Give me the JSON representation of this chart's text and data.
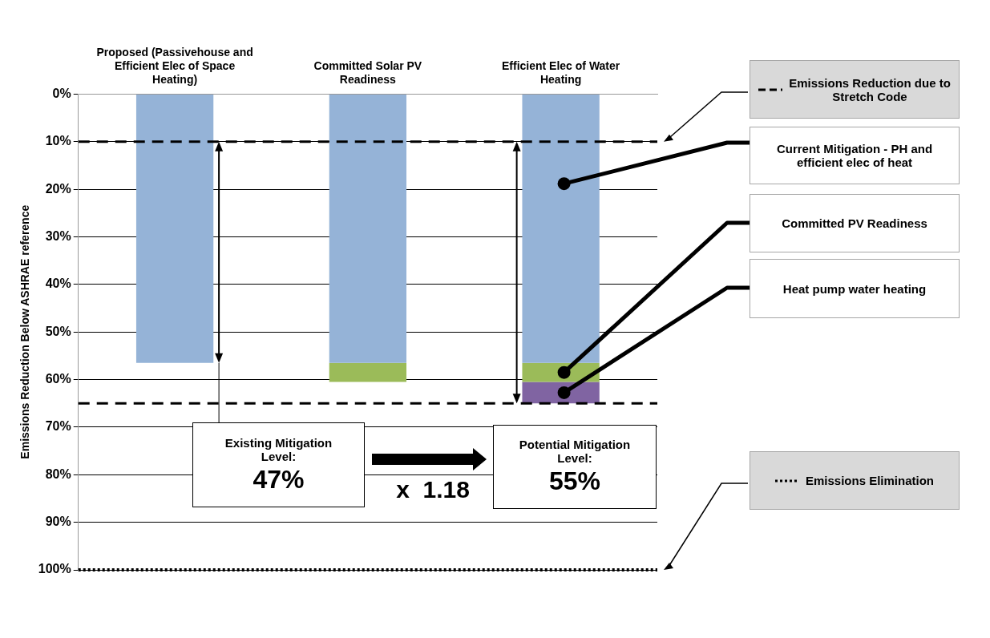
{
  "chart_data": {
    "type": "bar",
    "stacked": true,
    "categories": [
      "Proposed (Passivehouse and Efficient Elec of Space Heating)",
      "Committed Solar PV Readiness",
      "Efficient Elec of Water Heating"
    ],
    "series": [
      {
        "name": "Current Mitigation - PH and efficient elec of heat",
        "color": "#95b3d7",
        "values": [
          56.5,
          56.5,
          56.5
        ]
      },
      {
        "name": "Committed PV Readiness",
        "color": "#9bbb59",
        "values": [
          null,
          4,
          4
        ]
      },
      {
        "name": "Heat pump water heating",
        "color": "#8064a2",
        "values": [
          null,
          null,
          4.5
        ]
      }
    ],
    "ylabel": "Emissions Reduction Below ASHRAE reference",
    "ylim": [
      100,
      0
    ],
    "yticks": [
      {
        "value": 0,
        "label": "0%"
      },
      {
        "value": 10,
        "label": "10%"
      },
      {
        "value": 20,
        "label": "20%"
      },
      {
        "value": 30,
        "label": "30%"
      },
      {
        "value": 40,
        "label": "40%"
      },
      {
        "value": 50,
        "label": "50%"
      },
      {
        "value": 60,
        "label": "60%"
      },
      {
        "value": 70,
        "label": "70%"
      },
      {
        "value": 80,
        "label": "80%"
      },
      {
        "value": 90,
        "label": "90%"
      },
      {
        "value": 100,
        "label": "100%"
      }
    ],
    "grid": "y",
    "legend": "right",
    "ref_lines": [
      {
        "axis": "y",
        "value": 10,
        "label": "Emissions Reduction due to  Stretch Code",
        "color": "#000000",
        "line_style": "dashed"
      },
      {
        "axis": "y",
        "value": 65,
        "color": "#000000",
        "line_style": "dashed"
      },
      {
        "axis": "y",
        "value": 100,
        "label": "Emissions Elimination",
        "color": "#000000",
        "line_style": "dotted"
      }
    ],
    "annotations": [
      "Existing Mitigation Level: 47%",
      "Potential Mitigation Level: 55%",
      "x  1.18"
    ]
  }
}
